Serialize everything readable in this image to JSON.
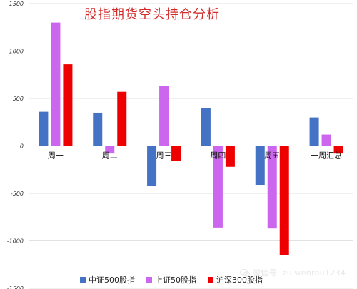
{
  "chart_data": {
    "type": "bar",
    "title": "股指期货空头持仓分析",
    "categories": [
      "周一",
      "周二",
      "周三",
      "周四",
      "周五",
      "一周汇总"
    ],
    "series": [
      {
        "name": "中证500股指",
        "color": "#4472c4",
        "values": [
          360,
          350,
          -420,
          400,
          -410,
          300
        ]
      },
      {
        "name": "上证50股指",
        "color": "#cc66ee",
        "values": [
          1300,
          -80,
          630,
          -860,
          -870,
          120
        ]
      },
      {
        "name": "沪深300股指",
        "color": "#ee0000",
        "values": [
          860,
          570,
          -160,
          -220,
          -1150,
          -80
        ]
      }
    ],
    "y_ticks": [
      "1500",
      "1000",
      "500",
      "0",
      "-500",
      "-1000",
      "-1500"
    ],
    "ylim": [
      -1500,
      1500
    ],
    "grid": true,
    "legend_position": "bottom"
  },
  "watermark": {
    "text": "微信号: zuiwenrou1234"
  }
}
